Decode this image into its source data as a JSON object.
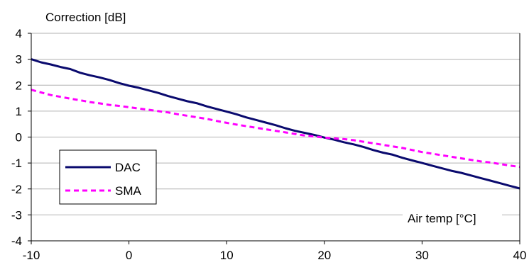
{
  "chart_data": {
    "type": "line",
    "ylabel": "Correction  [dB]",
    "xlabel": "Air temp [°C]",
    "xlim": [
      -10,
      40
    ],
    "ylim": [
      -4,
      4
    ],
    "x_ticks": [
      -10,
      0,
      10,
      20,
      30,
      40
    ],
    "y_ticks": [
      4,
      3,
      2,
      1,
      0,
      -1,
      -2,
      -3,
      -4
    ],
    "grid": "horizontal",
    "legend_position": "lower-left",
    "x": [
      -10,
      -9,
      -8,
      -7,
      -6,
      -5,
      -4,
      -3,
      -2,
      -1,
      0,
      1,
      2,
      3,
      4,
      5,
      6,
      7,
      8,
      9,
      10,
      11,
      12,
      13,
      14,
      15,
      16,
      17,
      18,
      19,
      20,
      21,
      22,
      23,
      24,
      25,
      26,
      27,
      28,
      29,
      30,
      31,
      32,
      33,
      34,
      35,
      36,
      37,
      38,
      39,
      40
    ],
    "series": [
      {
        "name": "DAC",
        "color": "#0a0a6e",
        "style": "solid",
        "values": [
          3.0,
          2.88,
          2.8,
          2.7,
          2.62,
          2.48,
          2.38,
          2.3,
          2.2,
          2.08,
          1.98,
          1.9,
          1.8,
          1.7,
          1.58,
          1.48,
          1.38,
          1.3,
          1.18,
          1.08,
          0.98,
          0.88,
          0.76,
          0.66,
          0.56,
          0.46,
          0.34,
          0.24,
          0.16,
          0.08,
          -0.02,
          -0.1,
          -0.2,
          -0.28,
          -0.38,
          -0.5,
          -0.6,
          -0.68,
          -0.8,
          -0.9,
          -1.0,
          -1.1,
          -1.2,
          -1.3,
          -1.38,
          -1.48,
          -1.58,
          -1.68,
          -1.78,
          -1.88,
          -1.98
        ]
      },
      {
        "name": "SMA",
        "color": "#ff00ff",
        "style": "dashed",
        "values": [
          1.82,
          1.72,
          1.62,
          1.55,
          1.48,
          1.42,
          1.35,
          1.3,
          1.24,
          1.2,
          1.15,
          1.1,
          1.05,
          1.0,
          0.95,
          0.88,
          0.82,
          0.76,
          0.7,
          0.62,
          0.55,
          0.48,
          0.42,
          0.36,
          0.3,
          0.24,
          0.18,
          0.12,
          0.06,
          0.02,
          -0.02,
          -0.05,
          -0.08,
          -0.12,
          -0.18,
          -0.24,
          -0.3,
          -0.36,
          -0.42,
          -0.5,
          -0.58,
          -0.64,
          -0.7,
          -0.76,
          -0.82,
          -0.88,
          -0.94,
          -0.98,
          -1.04,
          -1.1,
          -1.15
        ]
      }
    ]
  }
}
